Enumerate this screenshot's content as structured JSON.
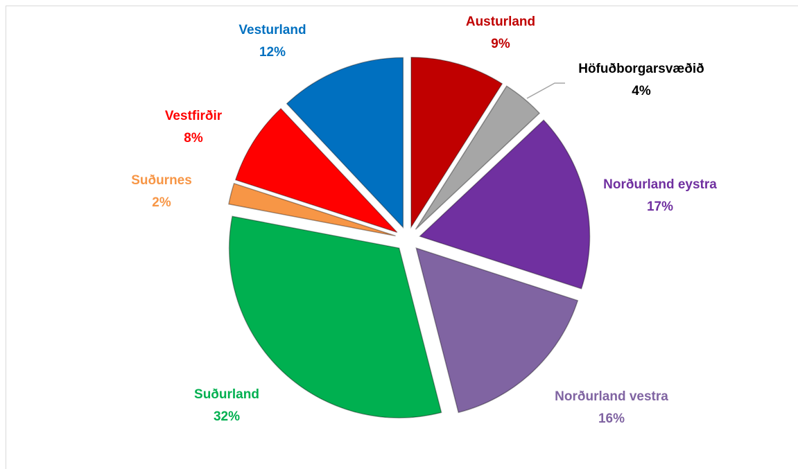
{
  "chart_data": {
    "type": "pie",
    "categories": [
      "Austurland",
      "Höfuðborgarsvæðið",
      "Norðurland eystra",
      "Norðurland vestra",
      "Suðurland",
      "Suðurnes",
      "Vestfirðir",
      "Vesturland"
    ],
    "values": [
      9,
      4,
      17,
      16,
      32,
      2,
      8,
      12
    ],
    "value_labels": [
      "9%",
      "4%",
      "17%",
      "16%",
      "32%",
      "2%",
      "8%",
      "12%"
    ],
    "colors": [
      "#c00000",
      "#a6a6a6",
      "#7030a0",
      "#8064a2",
      "#00b050",
      "#f79646",
      "#ff0000",
      "#0070c0"
    ],
    "label_colors": [
      "#c00000",
      "#000000",
      "#7030a0",
      "#8064a2",
      "#00b050",
      "#f79646",
      "#ff0000",
      "#0070c0"
    ]
  }
}
